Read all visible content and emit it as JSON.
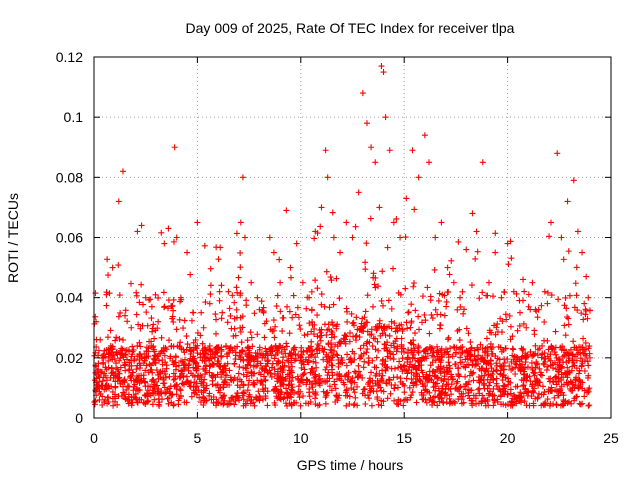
{
  "chart_data": {
    "type": "scatter",
    "title": "Day 009 of 2025, Rate Of TEC Index for receiver tlpa",
    "xlabel": "GPS time / hours",
    "ylabel": "ROTI / TECUs",
    "xlim": [
      0,
      25
    ],
    "ylim": [
      0,
      0.12
    ],
    "x_ticks": [
      0,
      5,
      10,
      15,
      20,
      25
    ],
    "x_tick_labels": [
      "0",
      "5",
      "10",
      "15",
      "20",
      "25"
    ],
    "y_ticks": [
      0,
      0.02,
      0.04,
      0.06,
      0.08,
      0.1,
      0.12
    ],
    "y_tick_labels": [
      "0",
      "0.02",
      "0.04",
      "0.06",
      "0.08",
      "0.1",
      "0.12"
    ],
    "grid": true,
    "marker": "+",
    "series_color": "#ff0000",
    "series": [
      {
        "name": "ROTI",
        "x": [
          0.1,
          0.3,
          0.6,
          0.9,
          1.2,
          1.4,
          1.5,
          1.8,
          2.1,
          2.3,
          2.5,
          2.8,
          3.1,
          3.4,
          3.6,
          3.9,
          4.0,
          4.2,
          4.5,
          4.8,
          5.0,
          5.3,
          5.6,
          5.9,
          6.2,
          6.5,
          6.8,
          7.1,
          7.2,
          7.3,
          7.6,
          7.9,
          8.2,
          8.5,
          8.7,
          9.0,
          9.3,
          9.5,
          9.8,
          10.1,
          10.4,
          10.7,
          11.0,
          11.2,
          11.3,
          11.6,
          11.9,
          12.2,
          12.5,
          12.8,
          13.0,
          13.2,
          13.4,
          13.6,
          13.8,
          13.9,
          14.0,
          14.1,
          14.3,
          14.5,
          14.8,
          15.1,
          15.4,
          15.7,
          16.0,
          16.2,
          16.5,
          16.8,
          17.1,
          17.4,
          17.7,
          18.0,
          18.3,
          18.5,
          18.8,
          19.1,
          19.4,
          19.7,
          20.0,
          20.3,
          20.6,
          20.9,
          21.2,
          21.5,
          21.8,
          22.1,
          22.4,
          22.6,
          22.9,
          23.2,
          23.4,
          23.6,
          23.8,
          23.9
        ],
        "y": [
          0.032,
          0.026,
          0.041,
          0.05,
          0.072,
          0.082,
          0.034,
          0.03,
          0.062,
          0.064,
          0.04,
          0.037,
          0.032,
          0.058,
          0.063,
          0.09,
          0.06,
          0.04,
          0.055,
          0.035,
          0.065,
          0.03,
          0.038,
          0.028,
          0.035,
          0.042,
          0.033,
          0.065,
          0.08,
          0.06,
          0.045,
          0.04,
          0.035,
          0.06,
          0.055,
          0.045,
          0.069,
          0.05,
          0.058,
          0.045,
          0.04,
          0.062,
          0.07,
          0.089,
          0.08,
          0.06,
          0.055,
          0.065,
          0.06,
          0.075,
          0.108,
          0.098,
          0.09,
          0.085,
          0.07,
          0.117,
          0.115,
          0.1,
          0.089,
          0.065,
          0.06,
          0.073,
          0.089,
          0.08,
          0.094,
          0.085,
          0.06,
          0.065,
          0.05,
          0.045,
          0.04,
          0.056,
          0.068,
          0.062,
          0.085,
          0.045,
          0.055,
          0.04,
          0.058,
          0.042,
          0.035,
          0.03,
          0.045,
          0.036,
          0.042,
          0.065,
          0.088,
          0.06,
          0.072,
          0.079,
          0.062,
          0.055,
          0.047,
          0.04
        ]
      }
    ]
  }
}
